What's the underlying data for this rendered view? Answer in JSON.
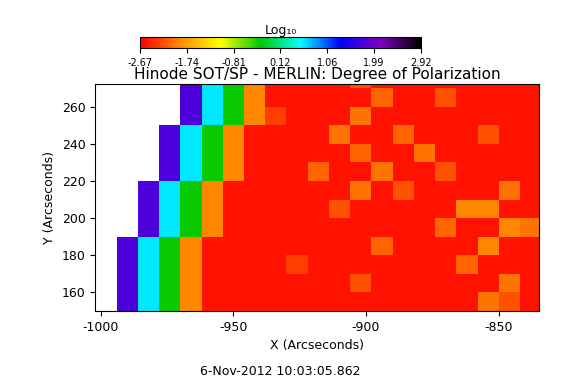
{
  "chart_data": {
    "type": "heatmap",
    "title": "Hinode SOT/SP - MERLIN: Degree of Polarization",
    "x_label": "X (Arcseconds)",
    "y_label": "Y (Arcseconds)",
    "annotation": "6-Nov-2012 10:03:05.862",
    "colorbar_label": "Log₁₀",
    "colorbar_range": [
      -2.67,
      2.92
    ],
    "colorbar_ticks": [
      -2.67,
      -1.74,
      -0.81,
      0.12,
      1.06,
      1.99,
      2.92
    ],
    "colors": [
      "#ff0000",
      "#ff8c00",
      "#ffff00",
      "#00c800",
      "#00ffff",
      "#0000ff",
      "#8000c0",
      "#000000"
    ],
    "xlim": [
      -1002,
      -835
    ],
    "ylim": [
      150,
      272
    ],
    "xticks": [
      -1000,
      -950,
      -900,
      -850
    ],
    "yticks": [
      160,
      180,
      200,
      220,
      240,
      260
    ],
    "x_edges": [
      -1002,
      -994,
      -986,
      -978,
      -970,
      -962,
      -954,
      -946,
      -938,
      -930,
      -922,
      -914,
      -906,
      -898,
      -890,
      -882,
      -874,
      -866,
      -858,
      -850,
      -842,
      -835
    ],
    "y_edges": [
      150,
      160,
      170,
      180,
      190,
      200,
      210,
      220,
      230,
      240,
      250,
      260,
      270,
      272
    ],
    "cells": [
      [
        null,
        1.8,
        0.6,
        -0.3,
        -1.9,
        -2.55,
        -2.55,
        -2.55,
        -2.55,
        -2.55,
        -2.55,
        -2.55,
        -2.55,
        -2.55,
        -2.55,
        -2.55,
        -2.55,
        -2.55,
        -2.0,
        -2.2,
        -2.55
      ],
      [
        null,
        1.8,
        0.6,
        -0.3,
        -1.9,
        -2.55,
        -2.55,
        -2.55,
        -2.55,
        -2.55,
        -2.55,
        -2.55,
        -2.2,
        -2.55,
        -2.55,
        -2.55,
        -2.55,
        -2.55,
        -2.55,
        -2.0,
        -2.55
      ],
      [
        null,
        1.8,
        0.6,
        -0.3,
        -1.9,
        -2.55,
        -2.55,
        -2.55,
        -2.55,
        -2.3,
        -2.55,
        -2.55,
        -2.55,
        -2.55,
        -2.55,
        -2.55,
        -2.55,
        -2.1,
        -2.55,
        -2.55,
        -2.55
      ],
      [
        null,
        1.8,
        0.6,
        -0.3,
        -1.9,
        -2.55,
        -2.55,
        -2.55,
        -2.55,
        -2.55,
        -2.55,
        -2.55,
        -2.55,
        -2.1,
        -2.55,
        -2.55,
        -2.55,
        -2.55,
        -1.9,
        -2.55,
        -2.55
      ],
      [
        null,
        null,
        1.8,
        0.6,
        -0.3,
        -1.9,
        -2.55,
        -2.55,
        -2.55,
        -2.55,
        -2.55,
        -2.55,
        -2.55,
        -2.55,
        -2.55,
        -2.55,
        -2.1,
        -2.55,
        -2.55,
        -1.9,
        -2.0
      ],
      [
        null,
        null,
        1.8,
        0.6,
        -0.3,
        -1.9,
        -2.55,
        -2.55,
        -2.55,
        -2.55,
        -2.55,
        -2.2,
        -2.55,
        -2.55,
        -2.55,
        -2.55,
        -2.55,
        -1.9,
        -1.9,
        -2.55,
        -2.55
      ],
      [
        null,
        null,
        1.8,
        0.6,
        -0.3,
        -1.9,
        -2.55,
        -2.55,
        -2.55,
        -2.55,
        -2.55,
        -2.55,
        -2.0,
        -2.55,
        -2.2,
        -2.55,
        -2.55,
        -2.55,
        -2.55,
        -2.0,
        -2.55
      ],
      [
        null,
        null,
        null,
        1.8,
        0.6,
        -0.3,
        -1.9,
        -2.55,
        -2.55,
        -2.55,
        -2.1,
        -2.55,
        -2.55,
        -2.0,
        -2.55,
        -2.55,
        -2.2,
        -2.55,
        -2.55,
        -2.55,
        -2.55
      ],
      [
        null,
        null,
        null,
        1.8,
        0.6,
        -0.3,
        -1.9,
        -2.55,
        -2.55,
        -2.55,
        -2.55,
        -2.55,
        -2.1,
        -2.55,
        -2.55,
        -2.0,
        -2.55,
        -2.55,
        -2.55,
        -2.55,
        -2.55
      ],
      [
        null,
        null,
        null,
        1.8,
        0.6,
        -0.3,
        -1.9,
        -2.55,
        -2.55,
        -2.55,
        -2.55,
        -2.0,
        -2.55,
        -2.55,
        -2.1,
        -2.55,
        -2.55,
        -2.55,
        -2.2,
        -2.55,
        -2.55
      ],
      [
        null,
        null,
        null,
        null,
        1.8,
        0.6,
        -0.3,
        -1.9,
        -2.3,
        -2.55,
        -2.55,
        -2.55,
        -2.0,
        -2.55,
        -2.55,
        -2.55,
        -2.55,
        -2.55,
        -2.55,
        -2.55,
        -2.55
      ],
      [
        null,
        null,
        null,
        null,
        1.8,
        0.6,
        -0.3,
        -1.9,
        -2.55,
        -2.55,
        -2.55,
        -2.55,
        -2.55,
        -2.1,
        -2.55,
        -2.55,
        -2.2,
        -2.55,
        -2.55,
        -2.55,
        -2.55
      ],
      [
        null,
        null,
        null,
        null,
        1.8,
        0.6,
        -0.3,
        -1.9,
        -2.55,
        -2.55,
        -2.55,
        -2.55,
        -2.2,
        -2.55,
        -2.55,
        -2.55,
        -2.55,
        -2.55,
        -2.55,
        -2.55,
        -2.55
      ]
    ]
  }
}
